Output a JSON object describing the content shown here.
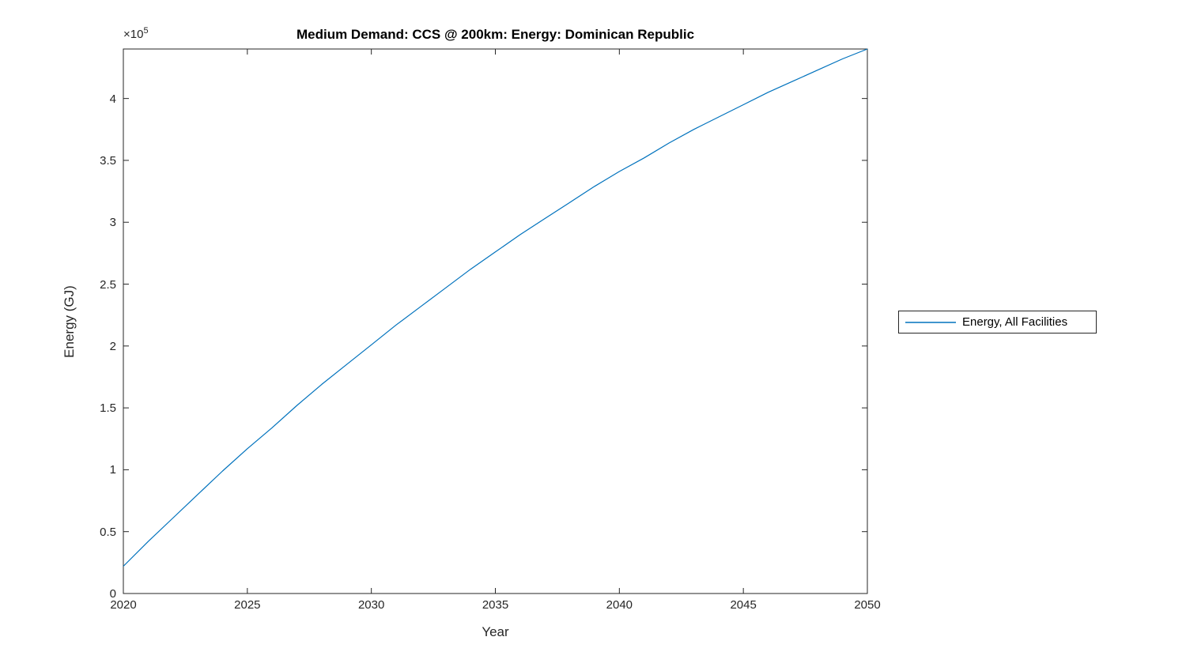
{
  "chart_data": {
    "type": "line",
    "title": "Medium Demand: CCS @ 200km: Energy: Dominican Republic",
    "xlabel": "Year",
    "ylabel": "Energy (GJ)",
    "y_multiplier": {
      "base": "×10",
      "exp": "5"
    },
    "y_unit": "10^5 GJ",
    "xlim": [
      2020,
      2050
    ],
    "ylim": [
      0,
      4.4
    ],
    "xticks": [
      2020,
      2025,
      2030,
      2035,
      2040,
      2045,
      2050
    ],
    "xtick_labels": [
      "2020",
      "2025",
      "2030",
      "2035",
      "2040",
      "2045",
      "2050"
    ],
    "yticks": [
      0,
      0.5,
      1,
      1.5,
      2,
      2.5,
      3,
      3.5,
      4
    ],
    "ytick_labels": [
      "0",
      "0.5",
      "1",
      "1.5",
      "2",
      "2.5",
      "3",
      "3.5",
      "4"
    ],
    "grid": false,
    "legend": {
      "position": "right-outside",
      "entries": [
        {
          "label": "Energy, All Facilities",
          "color": "#0072BD"
        }
      ]
    },
    "series": [
      {
        "name": "Energy, All Facilities",
        "color": "#0072BD",
        "x": [
          2020,
          2021,
          2022,
          2023,
          2024,
          2025,
          2026,
          2027,
          2028,
          2029,
          2030,
          2031,
          2032,
          2033,
          2034,
          2035,
          2036,
          2037,
          2038,
          2039,
          2040,
          2041,
          2042,
          2043,
          2044,
          2045,
          2046,
          2047,
          2048,
          2049,
          2050
        ],
        "y": [
          0.22,
          0.42,
          0.61,
          0.8,
          0.99,
          1.17,
          1.34,
          1.52,
          1.69,
          1.85,
          2.01,
          2.17,
          2.32,
          2.47,
          2.62,
          2.76,
          2.9,
          3.03,
          3.16,
          3.29,
          3.41,
          3.52,
          3.64,
          3.75,
          3.85,
          3.95,
          4.05,
          4.14,
          4.23,
          4.32,
          4.4
        ]
      }
    ]
  },
  "colors": {
    "line": "#0072BD",
    "axis": "#262626",
    "title": "#000000",
    "background": "#ffffff"
  }
}
